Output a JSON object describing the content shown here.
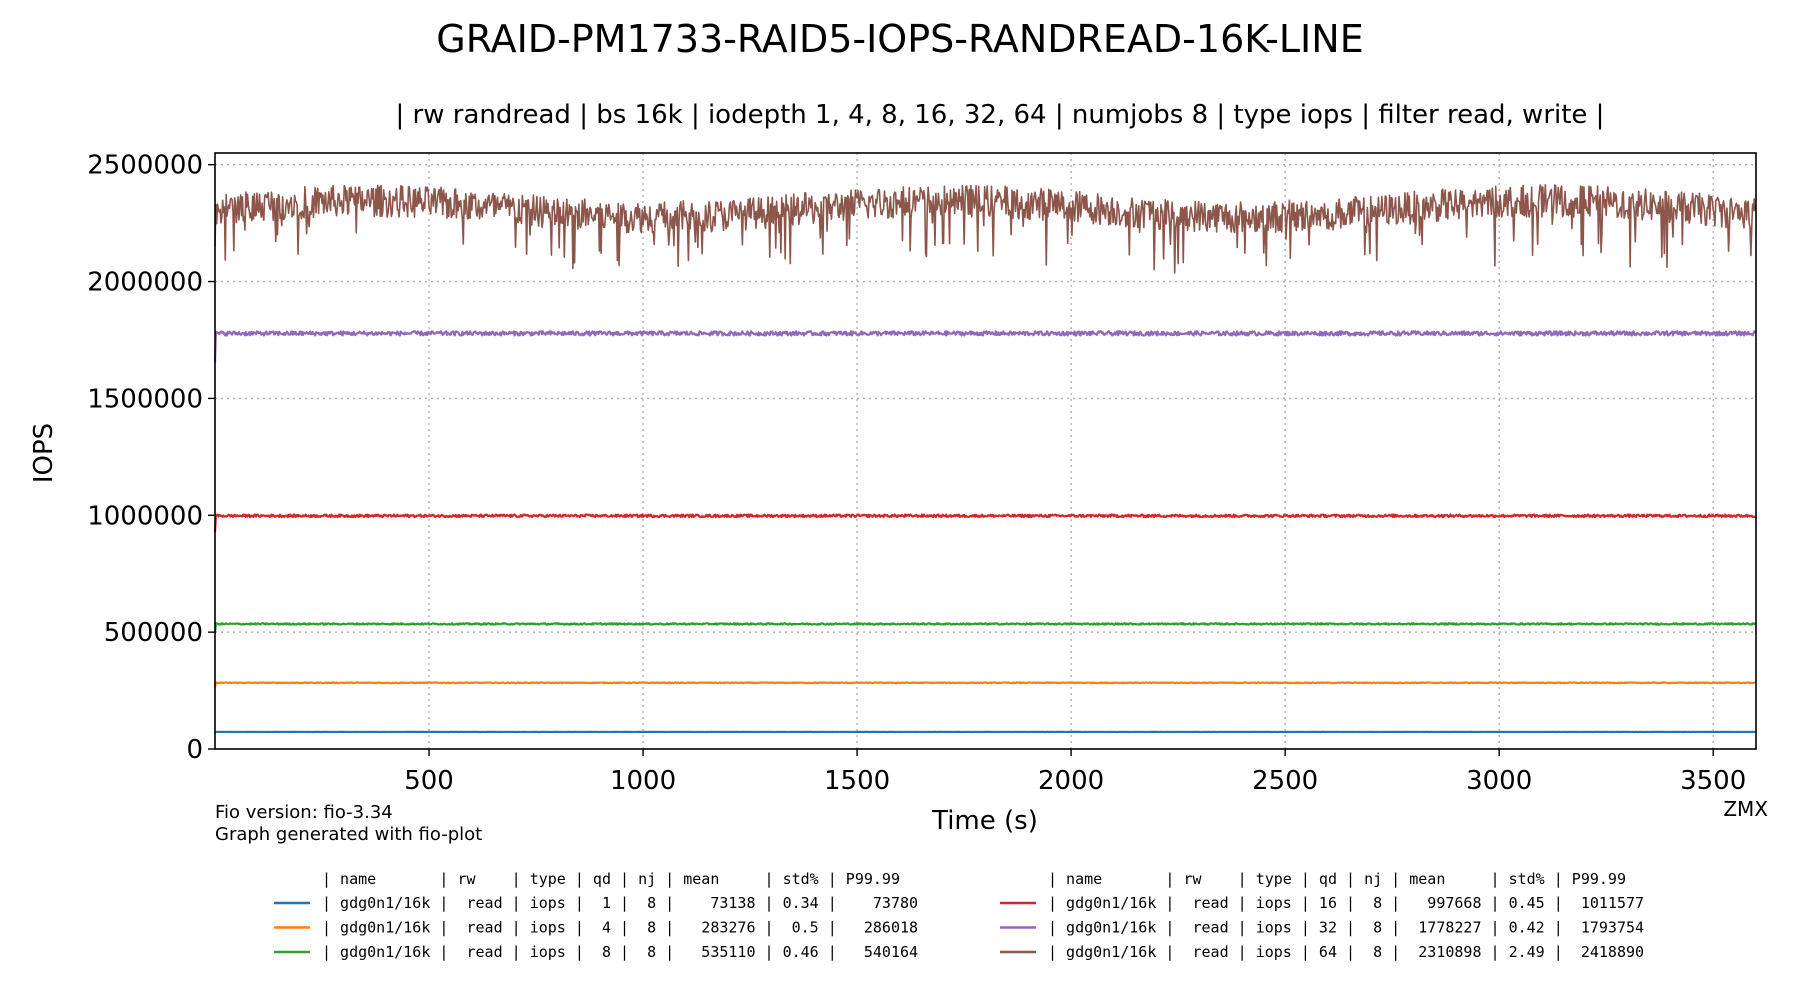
{
  "chart_data": {
    "type": "line",
    "title": "GRAID-PM1733-RAID5-IOPS-RANDREAD-16K-LINE",
    "subtitle": "| rw randread | bs 16k | iodepth 1, 4, 8, 16, 32, 64 | numjobs 8 | type iops | filter read, write |",
    "xlabel": "Time (s)",
    "ylabel": "IOPS",
    "xlim": [
      0,
      3600
    ],
    "ylim": [
      0,
      2550000
    ],
    "x_ticks": [
      500,
      1000,
      1500,
      2000,
      2500,
      3000,
      3500
    ],
    "y_ticks": [
      0,
      500000,
      1000000,
      1500000,
      2000000,
      2500000
    ],
    "grid": true,
    "legend_placement": "bottom",
    "footnotes": [
      "Fio version: fio-3.34",
      "Graph generated with fio-plot"
    ],
    "watermark": "ZMX",
    "table_header": "| name       | rw    | type | qd | nj | mean     | std% | P99.99",
    "series": [
      {
        "color": "#1f77b4",
        "mean": 73138,
        "std_pct": 0.34,
        "p9999": 73780,
        "row": "| gdg0n1/16k |  read | iops |  1 |  8 |    73138 | 0.34 |    73780"
      },
      {
        "color": "#ff7f0e",
        "mean": 283276,
        "std_pct": 0.5,
        "p9999": 286018,
        "row": "| gdg0n1/16k |  read | iops |  4 |  8 |   283276 |  0.5 |   286018"
      },
      {
        "color": "#2ca02c",
        "mean": 535110,
        "std_pct": 0.46,
        "p9999": 540164,
        "row": "| gdg0n1/16k |  read | iops |  8 |  8 |   535110 | 0.46 |   540164"
      },
      {
        "color": "#d62728",
        "mean": 997668,
        "std_pct": 0.45,
        "p9999": 1011577,
        "row": "| gdg0n1/16k |  read | iops | 16 |  8 |   997668 | 0.45 |  1011577"
      },
      {
        "color": "#9467bd",
        "mean": 1778227,
        "std_pct": 0.42,
        "p9999": 1793754,
        "row": "| gdg0n1/16k |  read | iops | 32 |  8 |  1778227 | 0.42 |  1793754"
      },
      {
        "color": "#8c564b",
        "mean": 2310898,
        "std_pct": 2.49,
        "p9999": 2418890,
        "row": "| gdg0n1/16k |  read | iops | 64 |  8 |  2310898 | 2.49 |  2418890"
      }
    ]
  }
}
